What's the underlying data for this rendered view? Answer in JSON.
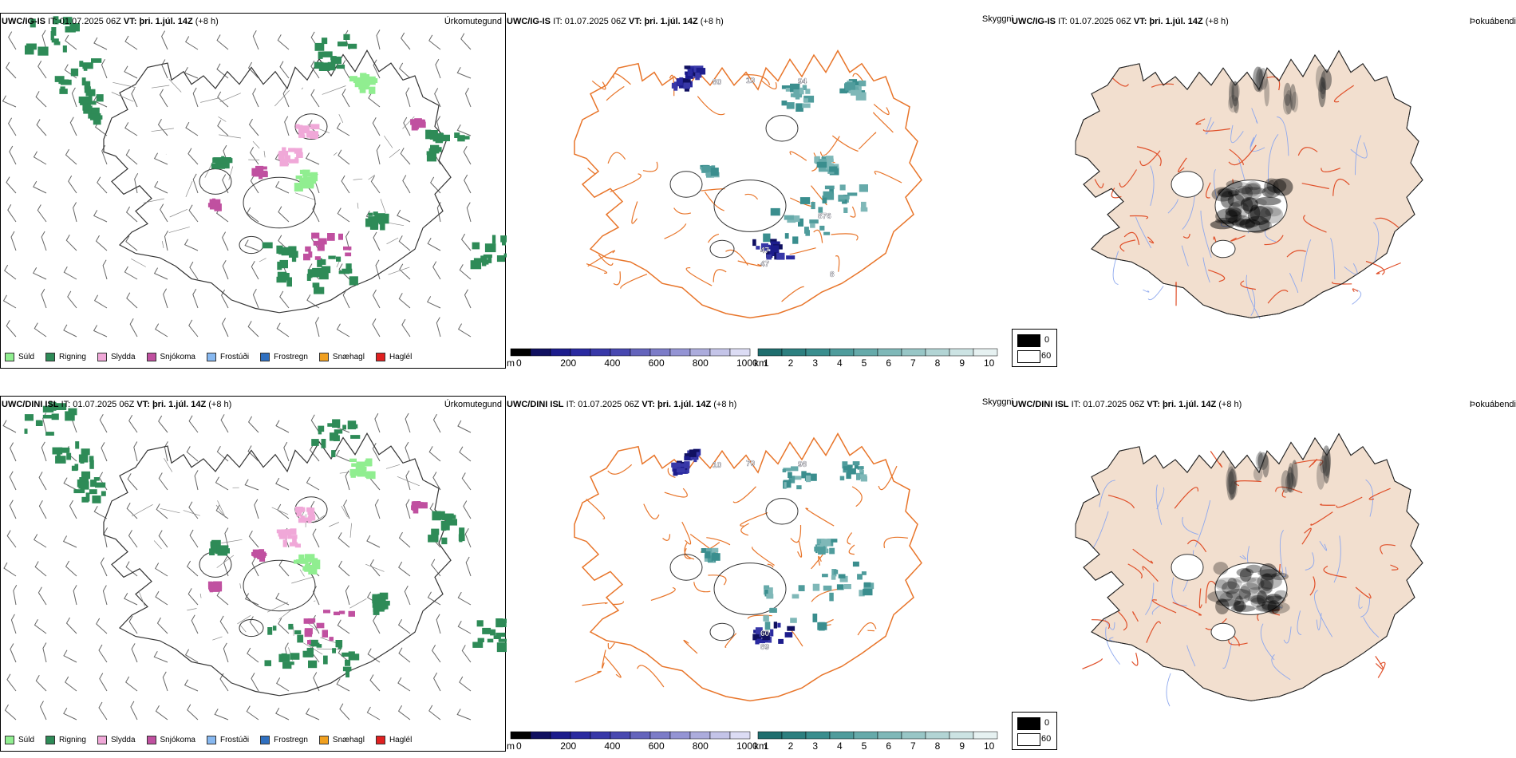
{
  "rows": [
    {
      "model": "UWC/IG-IS",
      "it_label": "IT:",
      "it_value": "01.07.2025 06Z",
      "vt_label": "VT:",
      "vt_value": "þri. 1.júl. 14Z",
      "lead": "(+8 h)"
    },
    {
      "model": "UWC/DINI ISL",
      "it_label": "IT:",
      "it_value": "01.07.2025 06Z",
      "vt_label": "VT:",
      "vt_value": "þri. 1.júl. 14Z",
      "lead": "(+8 h)"
    }
  ],
  "panel_titles": {
    "precip_type": "Úrkomutegund",
    "visibility": "Skyggni",
    "fog": "Þokuábendi"
  },
  "precip_legend": [
    {
      "label": "Súld",
      "color": "#90ee90"
    },
    {
      "label": "Rigning",
      "color": "#2e8b57"
    },
    {
      "label": "Slydda",
      "color": "#f0a8d8"
    },
    {
      "label": "Snjókoma",
      "color": "#c050a0"
    },
    {
      "label": "Frostúði",
      "color": "#87b8f0"
    },
    {
      "label": "Frostregn",
      "color": "#3070c0"
    },
    {
      "label": "Snæhagl",
      "color": "#f0a020"
    },
    {
      "label": "Haglél",
      "color": "#e02020"
    }
  ],
  "ceiling_scale": {
    "unit": "m",
    "ticks": [
      "0",
      "200",
      "400",
      "600",
      "800",
      "1000"
    ],
    "colors": [
      "#000000",
      "#101060",
      "#1c1c8c",
      "#2a2aa0",
      "#3838a8",
      "#4848b0",
      "#6464bc",
      "#7c7cc8",
      "#9494d4",
      "#acacdc",
      "#c4c4e8",
      "#dcdcf4"
    ]
  },
  "visibility_scale": {
    "unit": "km",
    "ticks": [
      "1",
      "2",
      "3",
      "4",
      "5",
      "6",
      "7",
      "8",
      "9",
      "10"
    ],
    "colors": [
      "#1f6e6e",
      "#2c7f7f",
      "#3a8e8e",
      "#4f9c9c",
      "#66aaaa",
      "#7fb8b8",
      "#98c6c6",
      "#b2d4d4",
      "#cce3e3",
      "#e6f1f1"
    ]
  },
  "fog_legend": [
    {
      "label": "0",
      "color": "#000000"
    },
    {
      "label": "60",
      "color": "#ffffff"
    }
  ],
  "visibility_labels_row1": [
    "80",
    "10",
    "94",
    "47",
    "47",
    "876",
    "8"
  ],
  "visibility_labels_row2": [
    "10",
    "70",
    "98",
    "60",
    "89"
  ],
  "colors": {
    "land_fog": "#f2dfcf",
    "road": "#e8752a",
    "road_fog": "#e0502a",
    "river": "#8ea8ee",
    "glacier": "#ffffff"
  }
}
